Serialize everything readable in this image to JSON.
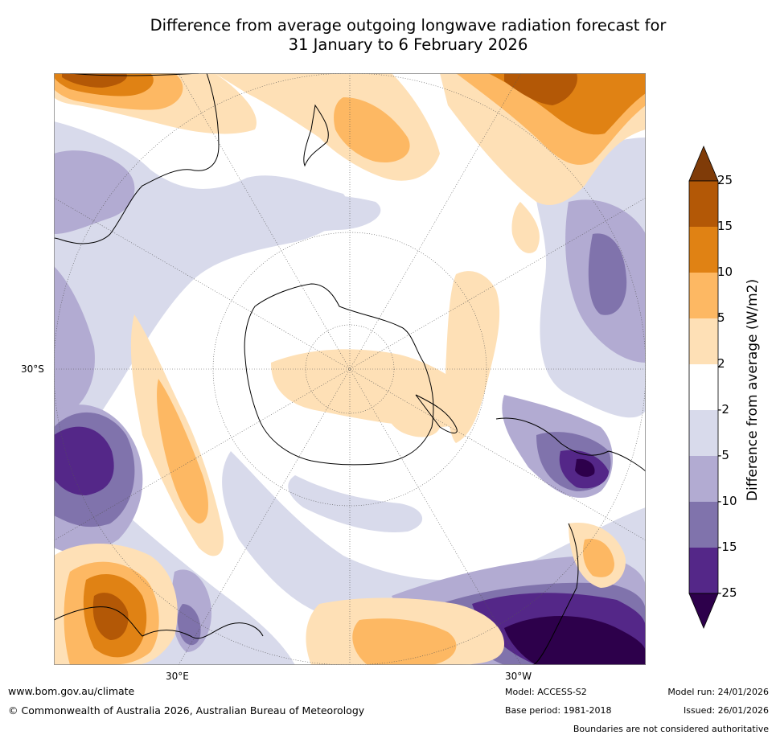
{
  "title_line1": "Difference from average outgoing longwave radiation forecast for",
  "title_line2": "31 January to 6 February 2026",
  "axes": {
    "lat_label": "30°S",
    "lon_left": "30°E",
    "lon_right": "30°W"
  },
  "colorbar": {
    "title": "Difference from average (W/m2)",
    "ticks": [
      "25",
      "15",
      "10",
      "5",
      "2",
      "-2",
      "-5",
      "-10",
      "-15",
      "-25"
    ],
    "colors": {
      "over": "#7f3b08",
      "b15_25": "#b35806",
      "b10_15": "#e08214",
      "b5_10": "#fdb863",
      "b2_5": "#fee0b6",
      "neutral": "#ffffff",
      "m2_m5": "#d8daeb",
      "m5_m10": "#b2abd2",
      "m10_m15": "#8073ac",
      "m15_m25": "#542788",
      "under": "#2d004b"
    }
  },
  "footer": {
    "website": "www.bom.gov.au/climate",
    "copyright": "© Commonwealth of Australia 2026, Australian Bureau of Meteorology",
    "model": "Model: ACCESS-S2",
    "base_period": "Base period: 1981-2018",
    "model_run": "Model run: 24/01/2026",
    "issued": "Issued: 26/01/2026",
    "disclaimer": "Boundaries are not considered authoritative"
  }
}
